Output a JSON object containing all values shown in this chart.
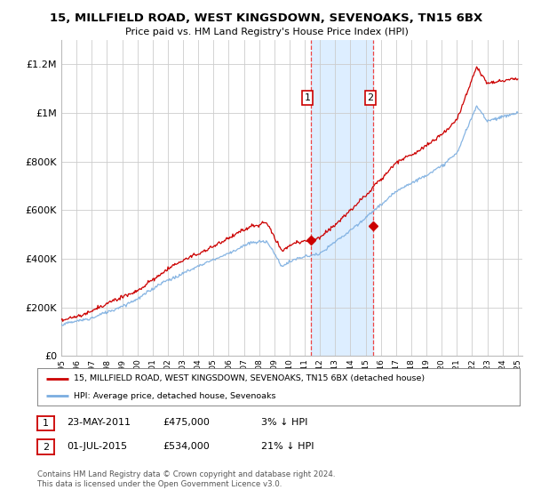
{
  "title": "15, MILLFIELD ROAD, WEST KINGSDOWN, SEVENOAKS, TN15 6BX",
  "subtitle": "Price paid vs. HM Land Registry's House Price Index (HPI)",
  "ylim": [
    0,
    1300000
  ],
  "yticks": [
    0,
    200000,
    400000,
    600000,
    800000,
    1000000,
    1200000
  ],
  "ytick_labels": [
    "£0",
    "£200K",
    "£400K",
    "£600K",
    "£800K",
    "£1M",
    "£1.2M"
  ],
  "x_start_year": 1995,
  "x_end_year": 2025,
  "background_color": "#ffffff",
  "plot_bg_color": "#ffffff",
  "grid_color": "#cccccc",
  "hpi_line_color": "#7aade0",
  "price_line_color": "#cc0000",
  "sale1_date": 2011.38,
  "sale1_price": 475000,
  "sale2_date": 2015.5,
  "sale2_price": 534000,
  "vline_color": "#ee4444",
  "highlight_color": "#ddeeff",
  "legend_label1": "15, MILLFIELD ROAD, WEST KINGSDOWN, SEVENOAKS, TN15 6BX (detached house)",
  "legend_label2": "HPI: Average price, detached house, Sevenoaks",
  "annot1_label": "1",
  "annot1_date": "23-MAY-2011",
  "annot1_price": "£475,000",
  "annot1_hpi": "3% ↓ HPI",
  "annot2_label": "2",
  "annot2_date": "01-JUL-2015",
  "annot2_price": "£534,000",
  "annot2_hpi": "21% ↓ HPI",
  "footer": "Contains HM Land Registry data © Crown copyright and database right 2024.\nThis data is licensed under the Open Government Licence v3.0."
}
